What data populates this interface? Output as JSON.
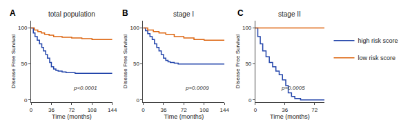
{
  "chart_data": [
    {
      "type": "step",
      "title": "total population",
      "annotations": [
        "A",
        "p<0.0001"
      ],
      "xlabel": "Time (months)",
      "ylabel": "Disease Free Survival",
      "xlim": [
        0,
        144
      ],
      "xticks": [
        0,
        36,
        72,
        108,
        144
      ],
      "ylim": [
        -3,
        110
      ],
      "yticks": [
        0,
        50,
        100
      ],
      "grid": false,
      "series": [
        {
          "name": "high risk score",
          "color": "#2244aa",
          "x": [
            0,
            4,
            7,
            11,
            15,
            19,
            22,
            26,
            29,
            33,
            36,
            40,
            44,
            48,
            55,
            62,
            70,
            78,
            90,
            108,
            144
          ],
          "values": [
            100,
            93,
            88,
            83,
            78,
            73,
            68,
            63,
            58,
            52,
            46,
            43,
            41,
            40,
            39,
            38,
            38,
            37,
            37,
            37,
            37
          ]
        },
        {
          "name": "low risk score",
          "color": "#dd6611",
          "x": [
            0,
            6,
            12,
            18,
            24,
            32,
            40,
            55,
            72,
            90,
            108,
            144
          ],
          "values": [
            100,
            97,
            95,
            93,
            91,
            90,
            88,
            87,
            86,
            85,
            84,
            84
          ]
        }
      ]
    },
    {
      "type": "step",
      "title": "stage I",
      "annotations": [
        "B",
        "p=0.0009"
      ],
      "xlabel": "Time (months)",
      "ylabel": "Disease Free Survival",
      "xlim": [
        0,
        144
      ],
      "xticks": [
        0,
        36,
        72,
        108,
        144
      ],
      "ylim": [
        -3,
        110
      ],
      "yticks": [
        0,
        50,
        100
      ],
      "grid": false,
      "series": [
        {
          "name": "high risk score",
          "color": "#2244aa",
          "x": [
            0,
            4,
            8,
            12,
            16,
            20,
            24,
            28,
            32,
            36,
            40,
            44,
            48,
            55,
            62,
            72,
            90,
            108,
            144
          ],
          "values": [
            100,
            96,
            92,
            88,
            84,
            78,
            73,
            68,
            63,
            58,
            55,
            53,
            52,
            51,
            50,
            50,
            50,
            50,
            50
          ]
        },
        {
          "name": "low risk score",
          "color": "#dd6611",
          "x": [
            0,
            8,
            18,
            28,
            40,
            55,
            72,
            90,
            108,
            144
          ],
          "values": [
            100,
            97,
            95,
            93,
            91,
            88,
            86,
            84,
            83,
            83
          ]
        }
      ]
    },
    {
      "type": "step",
      "title": "stage II",
      "annotations": [
        "C",
        "p=0.0005"
      ],
      "xlabel": "Time (months)",
      "ylabel": "Disease Free Survival",
      "xlim": [
        0,
        84
      ],
      "xticks": [
        0,
        36,
        72
      ],
      "ylim": [
        -3,
        110
      ],
      "yticks": [
        0,
        50,
        100
      ],
      "grid": false,
      "legend": "right",
      "series": [
        {
          "name": "high risk score",
          "color": "#2244aa",
          "x": [
            0,
            3,
            6,
            9,
            13,
            17,
            21,
            25,
            29,
            33,
            37,
            40,
            44,
            48,
            55,
            84
          ],
          "values": [
            100,
            88,
            78,
            68,
            60,
            52,
            46,
            40,
            35,
            28,
            20,
            10,
            5,
            2,
            0,
            0
          ]
        },
        {
          "name": "low risk score",
          "color": "#dd6611",
          "x": [
            0,
            10,
            20,
            36,
            50,
            72,
            84
          ],
          "values": [
            100,
            100,
            100,
            100,
            100,
            100,
            100
          ]
        }
      ]
    }
  ]
}
